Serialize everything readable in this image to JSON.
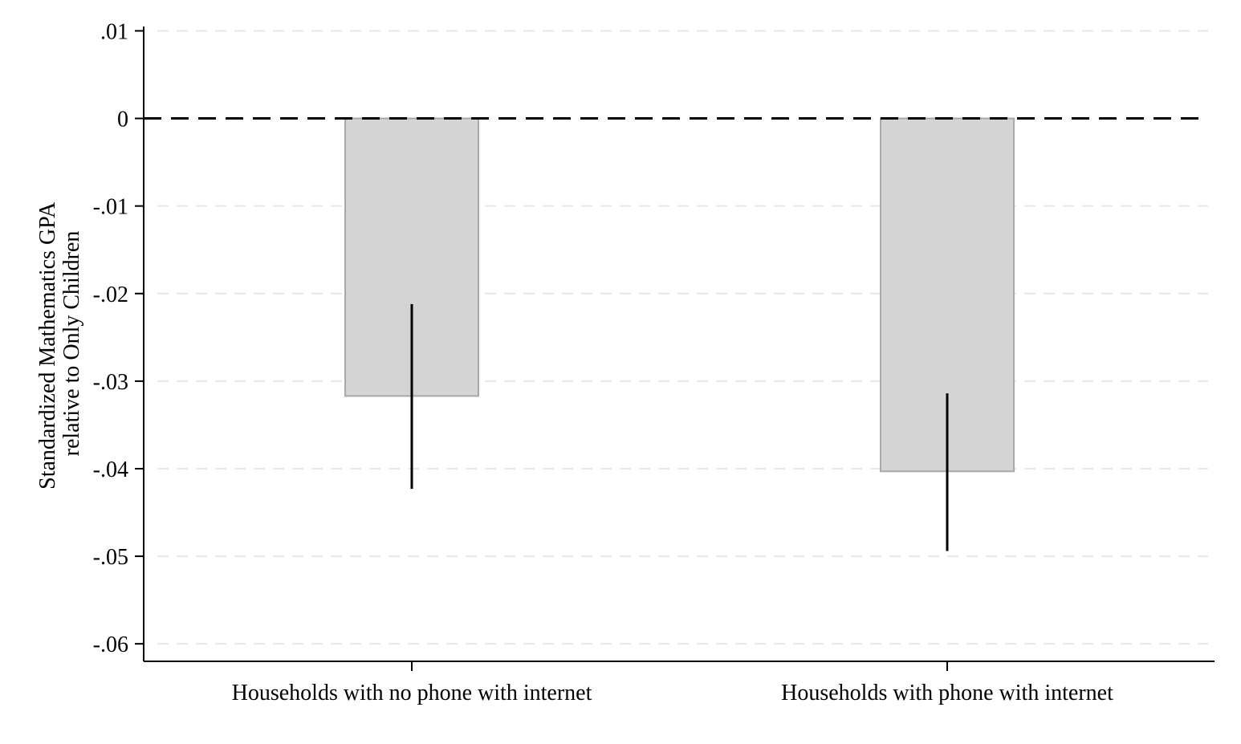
{
  "chart_data": {
    "type": "bar",
    "title": "",
    "xlabel": "",
    "ylabel_lines": [
      "Standardized Mathematics GPA",
      "relative to Only Children"
    ],
    "categories": [
      "Households with no phone with internet",
      "Households with phone with internet"
    ],
    "values": [
      -0.0317,
      -0.0403
    ],
    "ci_low": [
      -0.0423,
      -0.0494
    ],
    "ci_high": [
      -0.0212,
      -0.0314
    ],
    "ylim": [
      -0.062,
      0.0105
    ],
    "yticks": [
      0.01,
      0,
      -0.01,
      -0.02,
      -0.03,
      -0.04,
      -0.05,
      -0.06
    ],
    "ytick_labels": [
      ".01",
      "0",
      "-.01",
      "-.02",
      "-.03",
      "-.04",
      "-.05",
      "-.06"
    ],
    "reference_line": 0,
    "grid": true,
    "colors": {
      "bar_fill": "#d4d4d4",
      "bar_stroke": "#a8a8a8",
      "ci": "#000000",
      "grid": "#e6e6e6",
      "axis": "#000000"
    }
  }
}
